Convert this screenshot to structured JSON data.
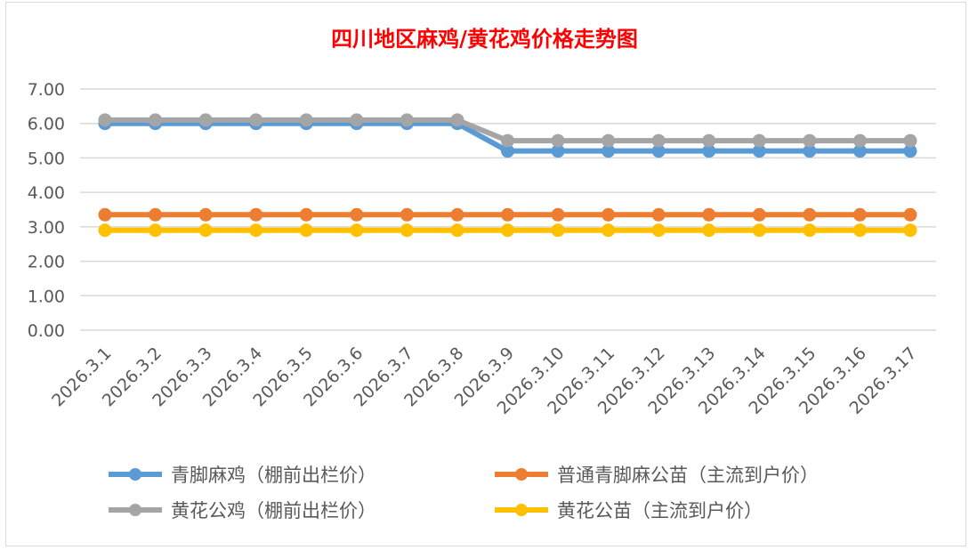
{
  "chart_data": {
    "type": "line",
    "title": "四川地区麻鸡/黄花鸡价格走势图",
    "categories": [
      "2026.3.1",
      "2026.3.2",
      "2026.3.3",
      "2026.3.4",
      "2026.3.5",
      "2026.3.6",
      "2026.3.7",
      "2026.3.8",
      "2026.3.9",
      "2026.3.10",
      "2026.3.11",
      "2026.3.12",
      "2026.3.13",
      "2026.3.14",
      "2026.3.15",
      "2026.3.16",
      "2026.3.17"
    ],
    "ylim": [
      0,
      7
    ],
    "yticks": [
      "0.00",
      "1.00",
      "2.00",
      "3.00",
      "4.00",
      "5.00",
      "6.00",
      "7.00"
    ],
    "grid": true,
    "legend_placement": "bottom",
    "series": [
      {
        "name": "青脚麻鸡（棚前出栏价）",
        "color": "#5b9bd5",
        "values": [
          6.0,
          6.0,
          6.0,
          6.0,
          6.0,
          6.0,
          6.0,
          6.0,
          5.2,
          5.2,
          5.2,
          5.2,
          5.2,
          5.2,
          5.2,
          5.2,
          5.2
        ]
      },
      {
        "name": "普通青脚麻公苗（主流到户价）",
        "color": "#ed7d31",
        "values": [
          3.35,
          3.35,
          3.35,
          3.35,
          3.35,
          3.35,
          3.35,
          3.35,
          3.35,
          3.35,
          3.35,
          3.35,
          3.35,
          3.35,
          3.35,
          3.35,
          3.35
        ]
      },
      {
        "name": "黄花公鸡（棚前出栏价）",
        "color": "#a5a5a5",
        "values": [
          6.1,
          6.1,
          6.1,
          6.1,
          6.1,
          6.1,
          6.1,
          6.1,
          5.5,
          5.5,
          5.5,
          5.5,
          5.5,
          5.5,
          5.5,
          5.5,
          5.5
        ]
      },
      {
        "name": "黄花公苗（主流到户价）",
        "color": "#ffc000",
        "values": [
          2.9,
          2.9,
          2.9,
          2.9,
          2.9,
          2.9,
          2.9,
          2.9,
          2.9,
          2.9,
          2.9,
          2.9,
          2.9,
          2.9,
          2.9,
          2.9,
          2.9
        ]
      }
    ]
  }
}
